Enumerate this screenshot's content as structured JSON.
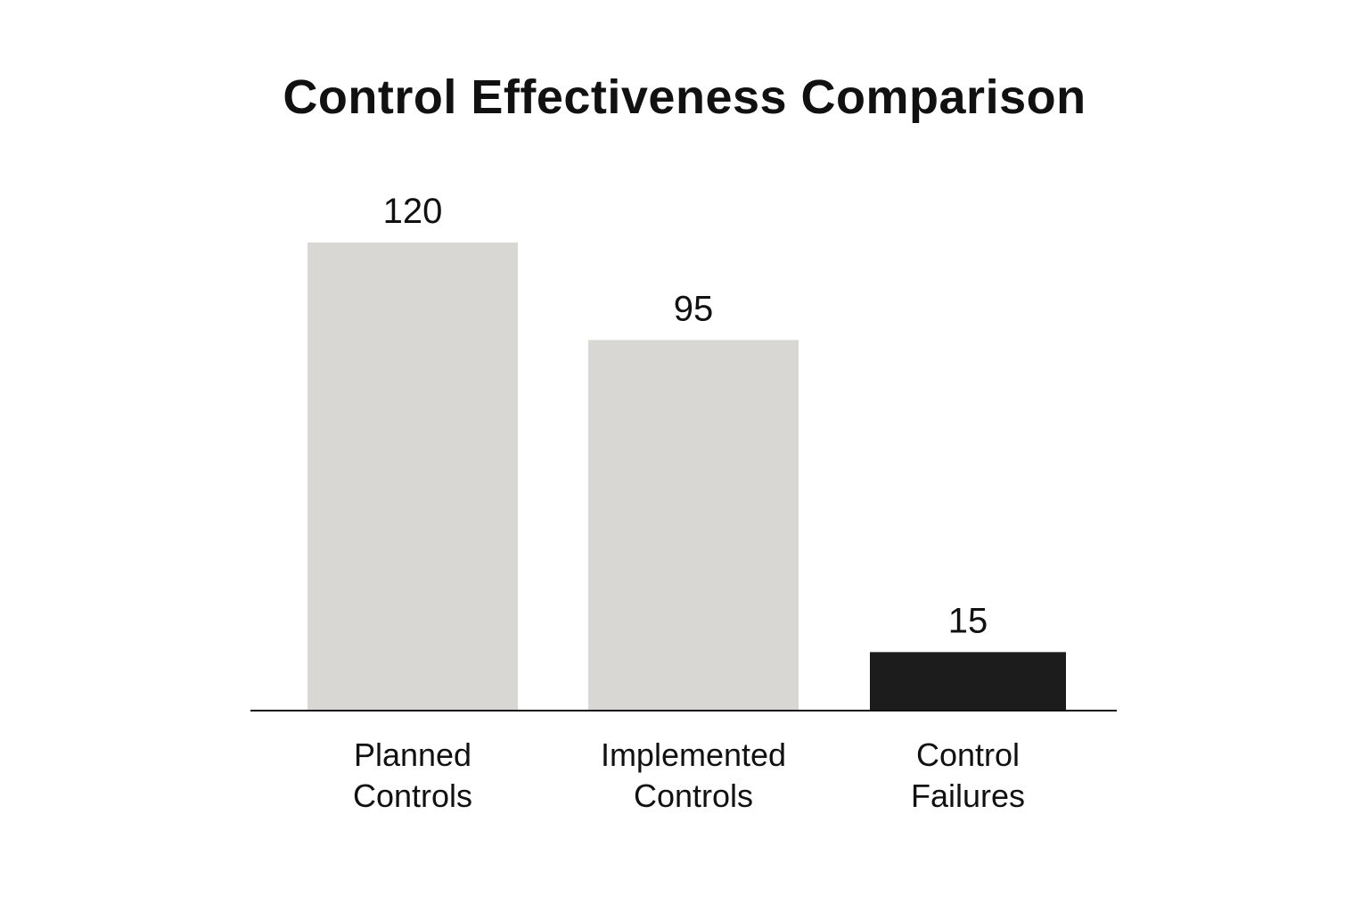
{
  "chart_data": {
    "type": "bar",
    "title": "Control Effectiveness Comparison",
    "xlabel": "",
    "ylabel": "",
    "categories": [
      [
        "Planned",
        "Controls"
      ],
      [
        "Implemented",
        "Controls"
      ],
      [
        "Control",
        "Failures"
      ]
    ],
    "values": [
      120,
      95,
      15
    ],
    "value_labels": [
      "120",
      "95",
      "15"
    ],
    "colors": [
      "#d8d7d3",
      "#d8d7d3",
      "#1b1c1b"
    ],
    "ylim": [
      0,
      120
    ],
    "grid": false,
    "legend": "none"
  }
}
